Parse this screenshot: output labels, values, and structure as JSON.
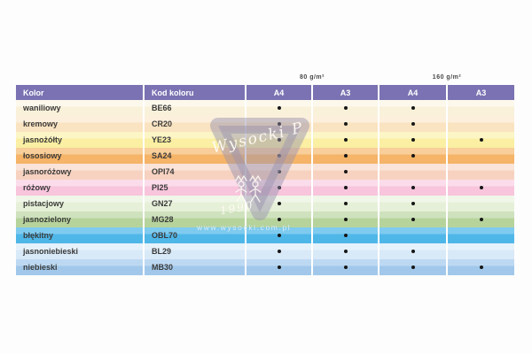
{
  "weights": [
    "80 g/m²",
    "160 g/m²"
  ],
  "table": {
    "col_color_header": "Kolor",
    "col_code_header": "Kod koloru",
    "size_columns": [
      "A4",
      "A3",
      "A4",
      "A3"
    ],
    "header_bg": "#7a72b2",
    "dot_color": "#161616",
    "rows": [
      {
        "name": "waniliowy",
        "code": "BE66",
        "base": "#f9f1da",
        "light": "#fcf8ec",
        "dots": [
          1,
          1,
          1,
          0
        ]
      },
      {
        "name": "kremowy",
        "code": "CR20",
        "base": "#fae3c0",
        "light": "#fcefdc",
        "dots": [
          1,
          1,
          1,
          0
        ]
      },
      {
        "name": "jasnożółty",
        "code": "YE23",
        "base": "#faefa2",
        "light": "#fcf5c6",
        "dots": [
          1,
          1,
          1,
          1
        ]
      },
      {
        "name": "łososiowy",
        "code": "SA24",
        "base": "#f5b468",
        "light": "#f8ce9a",
        "dots": [
          1,
          1,
          1,
          0
        ]
      },
      {
        "name": "jasnoróżowy",
        "code": "OPI74",
        "base": "#f7d2c0",
        "light": "#fae3d8",
        "dots": [
          1,
          1,
          0,
          0
        ]
      },
      {
        "name": "różowy",
        "code": "PI25",
        "base": "#f8c5dc",
        "light": "#fbdcea",
        "dots": [
          1,
          1,
          1,
          1
        ]
      },
      {
        "name": "pistacjowy",
        "code": "GN27",
        "base": "#e6f0d8",
        "light": "#f0f6e8",
        "dots": [
          1,
          1,
          1,
          0
        ]
      },
      {
        "name": "jasnozielony",
        "code": "MG28",
        "base": "#b7d39c",
        "light": "#cfe2be",
        "dots": [
          1,
          1,
          1,
          1
        ]
      },
      {
        "name": "błękitny",
        "code": "OBL70",
        "base": "#4fb7e8",
        "light": "#7fcbef",
        "dots": [
          1,
          1,
          0,
          0
        ]
      },
      {
        "name": "jasnoniebieski",
        "code": "BL29",
        "base": "#d8e9f8",
        "light": "#e6f2fb",
        "dots": [
          1,
          1,
          1,
          0
        ]
      },
      {
        "name": "niebieski",
        "code": "MB30",
        "base": "#a1c8eb",
        "light": "#bdd9f2",
        "dots": [
          1,
          1,
          1,
          1
        ]
      }
    ]
  },
  "watermark": {
    "signature": "Wysocki P",
    "year": "1990",
    "url": "www.wysocki.com.pl",
    "triangle_color": "rgba(152,146,174,0.48)"
  }
}
